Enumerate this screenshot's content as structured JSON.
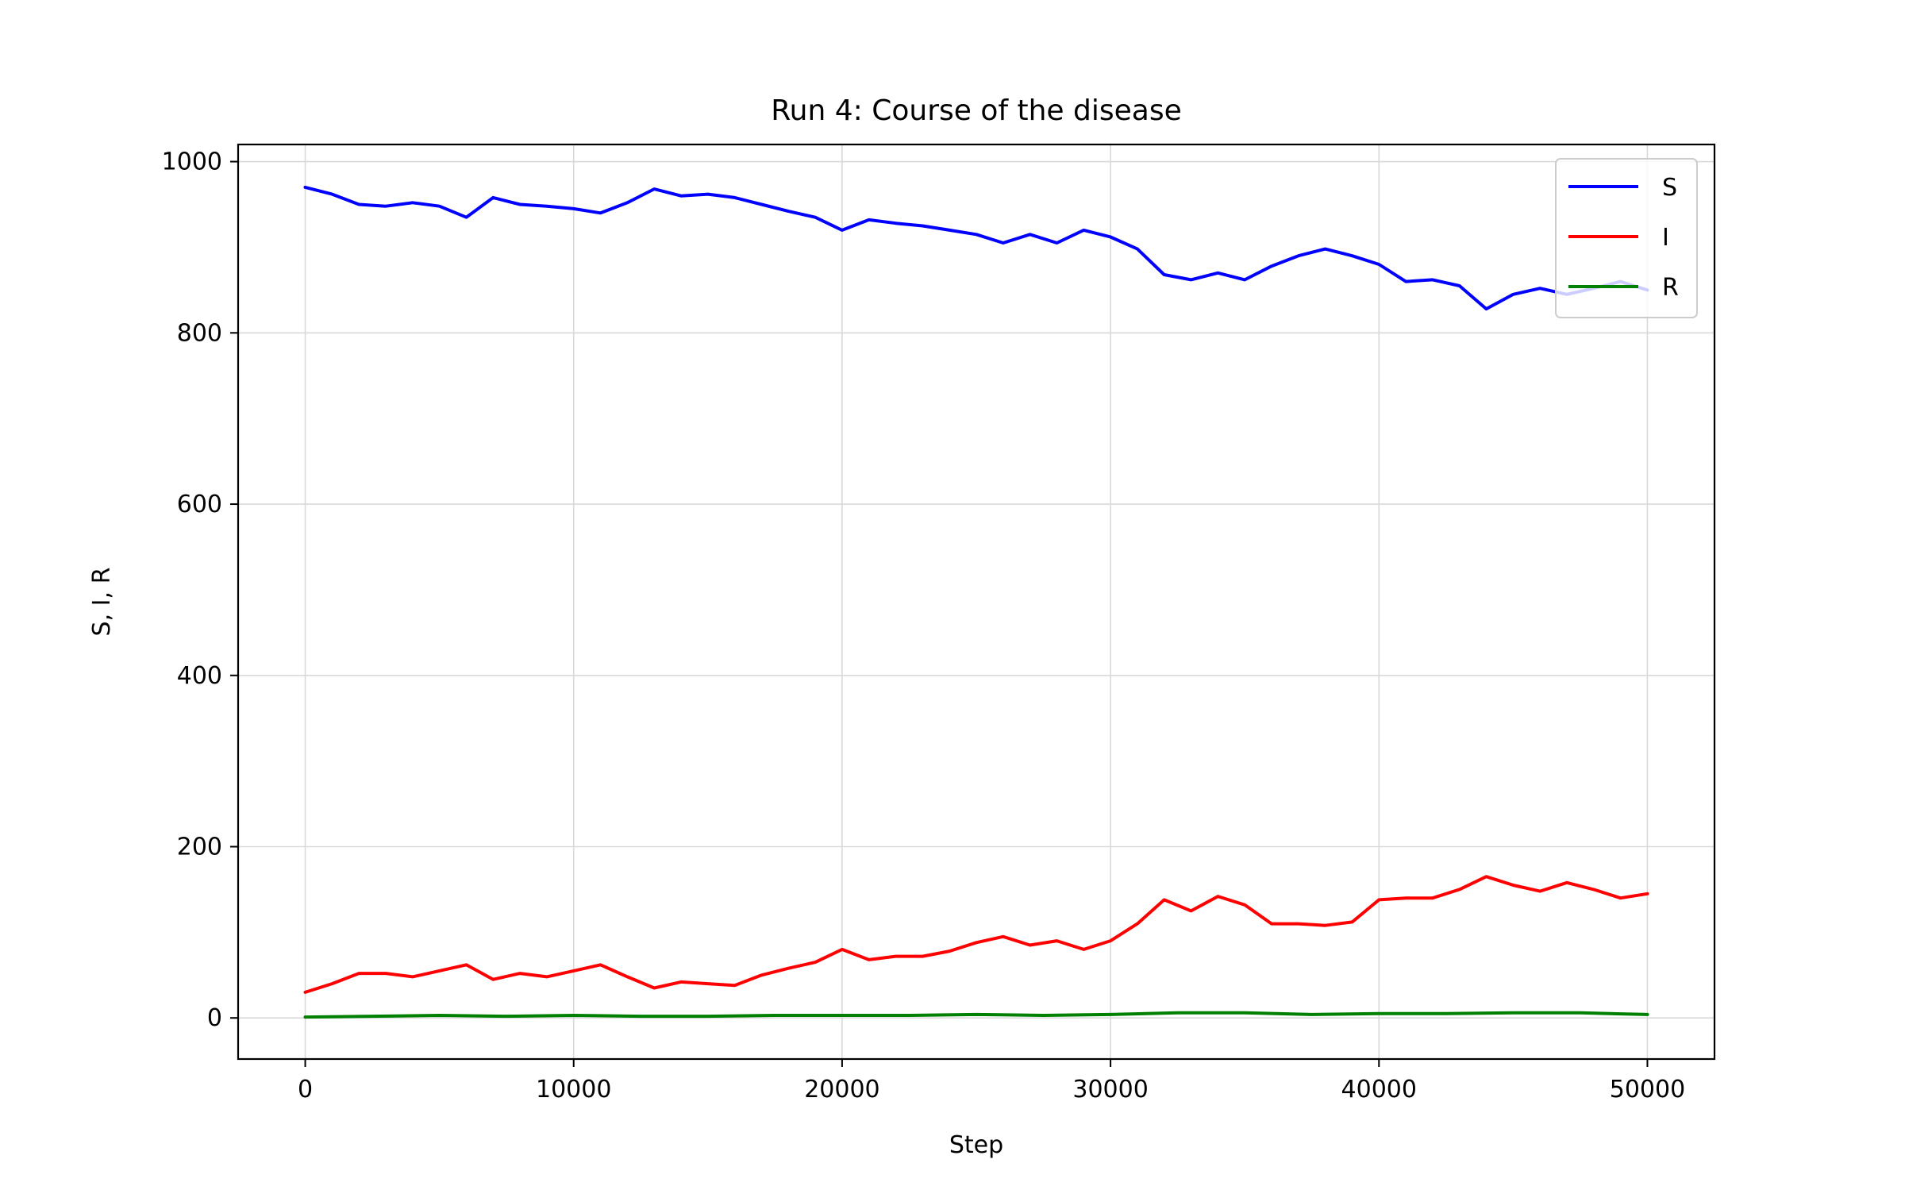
{
  "chart_data": {
    "type": "line",
    "title": "Run 4: Course of the disease",
    "xlabel": "Step",
    "ylabel": "S, I, R",
    "xlim": [
      -2500,
      52500
    ],
    "ylim": [
      -48,
      1020
    ],
    "xticks": [
      0,
      10000,
      20000,
      30000,
      40000,
      50000
    ],
    "yticks": [
      0,
      200,
      400,
      600,
      800,
      1000
    ],
    "grid": true,
    "legend_position": "top-right",
    "colors": {
      "S": "#0000ff",
      "I": "#ff0000",
      "R": "#008000"
    },
    "series": [
      {
        "name": "S",
        "color": "#0000ff",
        "x": [
          0,
          1000,
          2000,
          3000,
          4000,
          5000,
          6000,
          7000,
          8000,
          9000,
          10000,
          11000,
          12000,
          13000,
          14000,
          15000,
          16000,
          17000,
          18000,
          19000,
          20000,
          21000,
          22000,
          23000,
          24000,
          25000,
          26000,
          27000,
          28000,
          29000,
          30000,
          31000,
          32000,
          33000,
          34000,
          35000,
          36000,
          37000,
          38000,
          39000,
          40000,
          41000,
          42000,
          43000,
          44000,
          45000,
          46000,
          47000,
          48000,
          49000,
          50000
        ],
        "values": [
          970,
          962,
          950,
          948,
          952,
          948,
          935,
          958,
          950,
          948,
          945,
          940,
          952,
          968,
          960,
          962,
          958,
          950,
          942,
          935,
          920,
          932,
          928,
          925,
          920,
          915,
          905,
          915,
          905,
          920,
          912,
          898,
          868,
          862,
          870,
          862,
          878,
          890,
          898,
          890,
          880,
          860,
          862,
          855,
          828,
          845,
          852,
          845,
          852,
          860,
          850
        ]
      },
      {
        "name": "I",
        "color": "#ff0000",
        "x": [
          0,
          1000,
          2000,
          3000,
          4000,
          5000,
          6000,
          7000,
          8000,
          9000,
          10000,
          11000,
          12000,
          13000,
          14000,
          15000,
          16000,
          17000,
          18000,
          19000,
          20000,
          21000,
          22000,
          23000,
          24000,
          25000,
          26000,
          27000,
          28000,
          29000,
          30000,
          31000,
          32000,
          33000,
          34000,
          35000,
          36000,
          37000,
          38000,
          39000,
          40000,
          41000,
          42000,
          43000,
          44000,
          45000,
          46000,
          47000,
          48000,
          49000,
          50000
        ],
        "values": [
          30,
          40,
          52,
          52,
          48,
          55,
          62,
          45,
          52,
          48,
          55,
          62,
          48,
          35,
          42,
          40,
          38,
          50,
          58,
          65,
          80,
          68,
          72,
          72,
          78,
          88,
          95,
          85,
          90,
          80,
          90,
          110,
          138,
          125,
          142,
          132,
          110,
          110,
          108,
          112,
          138,
          140,
          140,
          150,
          165,
          155,
          148,
          158,
          150,
          140,
          145
        ]
      },
      {
        "name": "R",
        "color": "#008000",
        "x": [
          0,
          2500,
          5000,
          7500,
          10000,
          12500,
          15000,
          17500,
          20000,
          22500,
          25000,
          27500,
          30000,
          32500,
          35000,
          37500,
          40000,
          42500,
          45000,
          47500,
          50000
        ],
        "values": [
          1,
          2,
          3,
          2,
          3,
          2,
          2,
          3,
          3,
          3,
          4,
          3,
          4,
          6,
          6,
          4,
          5,
          5,
          6,
          6,
          4
        ]
      }
    ]
  }
}
